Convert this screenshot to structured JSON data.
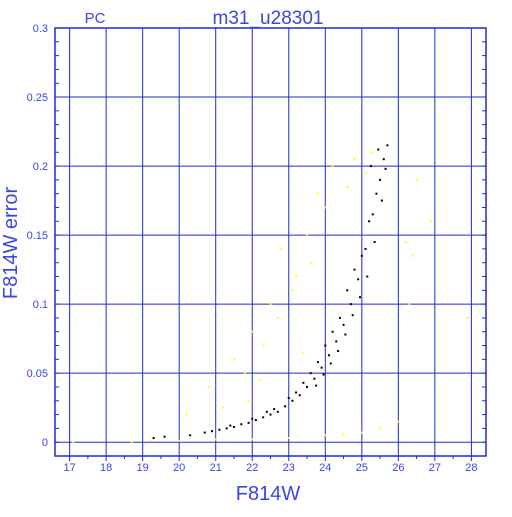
{
  "chart_data": {
    "type": "scatter",
    "title": "m31_u28301",
    "panel_label": "PC",
    "xlabel": "F814W",
    "ylabel": "F814W error",
    "xlim": [
      16.6,
      28.4
    ],
    "ylim": [
      -0.01,
      0.3
    ],
    "x_ticks": [
      17,
      18,
      19,
      20,
      21,
      22,
      23,
      24,
      25,
      26,
      27,
      28
    ],
    "y_ticks": [
      0,
      0.05,
      0.1,
      0.15,
      0.2,
      0.25,
      0.3
    ],
    "y_tick_labels": [
      "0",
      "0.05",
      "0.1",
      "0.15",
      "0.2",
      "0.25",
      "0.3"
    ],
    "grid": true,
    "colors": {
      "axis": "#1e2bd0",
      "grid": "#1e2bd0",
      "text": "#3a46e0",
      "series_main": "#000000",
      "series_secondary": "#ffff00"
    },
    "series": [
      {
        "color": "#000000",
        "points": [
          [
            19.3,
            0.003
          ],
          [
            19.6,
            0.004
          ],
          [
            20.3,
            0.005
          ],
          [
            20.7,
            0.007
          ],
          [
            20.9,
            0.008
          ],
          [
            21.1,
            0.009
          ],
          [
            21.3,
            0.01
          ],
          [
            21.5,
            0.011
          ],
          [
            21.7,
            0.013
          ],
          [
            21.9,
            0.014
          ],
          [
            22.1,
            0.016
          ],
          [
            22.3,
            0.018
          ],
          [
            22.5,
            0.02
          ],
          [
            22.7,
            0.022
          ],
          [
            22.9,
            0.026
          ],
          [
            23.1,
            0.03
          ],
          [
            23.3,
            0.034
          ],
          [
            23.5,
            0.04
          ],
          [
            23.7,
            0.046
          ],
          [
            23.9,
            0.054
          ],
          [
            24.1,
            0.063
          ],
          [
            24.3,
            0.073
          ],
          [
            24.5,
            0.085
          ],
          [
            24.7,
            0.1
          ],
          [
            24.9,
            0.118
          ],
          [
            25.1,
            0.14
          ],
          [
            25.3,
            0.165
          ],
          [
            25.5,
            0.19
          ],
          [
            25.7,
            0.215
          ],
          [
            21.4,
            0.012
          ],
          [
            22.0,
            0.017
          ],
          [
            22.6,
            0.024
          ],
          [
            23.2,
            0.036
          ],
          [
            23.8,
            0.058
          ],
          [
            24.4,
            0.09
          ],
          [
            25.0,
            0.135
          ],
          [
            25.4,
            0.18
          ],
          [
            25.6,
            0.205
          ],
          [
            24.2,
            0.08
          ],
          [
            24.6,
            0.11
          ],
          [
            25.2,
            0.16
          ],
          [
            24.8,
            0.125
          ],
          [
            23.6,
            0.05
          ],
          [
            23.0,
            0.032
          ],
          [
            22.4,
            0.022
          ],
          [
            24.95,
            0.105
          ],
          [
            25.15,
            0.12
          ],
          [
            25.35,
            0.145
          ],
          [
            24.0,
            0.07
          ],
          [
            23.4,
            0.043
          ],
          [
            25.55,
            0.175
          ],
          [
            25.65,
            0.198
          ],
          [
            25.45,
            0.212
          ],
          [
            25.25,
            0.2
          ],
          [
            24.75,
            0.092
          ],
          [
            24.55,
            0.078
          ],
          [
            24.35,
            0.066
          ],
          [
            24.15,
            0.057
          ],
          [
            23.95,
            0.049
          ],
          [
            23.75,
            0.041
          ]
        ]
      },
      {
        "color": "#ffff00",
        "points": [
          [
            17.1,
            0.0
          ],
          [
            18.7,
            0.0
          ],
          [
            19.2,
            0.001
          ],
          [
            20.0,
            0.001
          ],
          [
            21.0,
            0.002
          ],
          [
            22.0,
            0.002
          ],
          [
            23.0,
            0.003
          ],
          [
            24.0,
            0.005
          ],
          [
            24.5,
            0.006
          ],
          [
            25.0,
            0.007
          ],
          [
            25.5,
            0.01
          ],
          [
            26.0,
            0.015
          ],
          [
            20.8,
            0.04
          ],
          [
            21.5,
            0.06
          ],
          [
            22.0,
            0.08
          ],
          [
            22.5,
            0.1
          ],
          [
            22.8,
            0.14
          ],
          [
            23.2,
            0.12
          ],
          [
            23.5,
            0.15
          ],
          [
            23.8,
            0.18
          ],
          [
            24.2,
            0.2
          ],
          [
            24.8,
            0.205
          ],
          [
            25.3,
            0.21
          ],
          [
            26.5,
            0.19
          ],
          [
            26.9,
            0.16
          ],
          [
            27.9,
            0.09
          ],
          [
            21.2,
            0.025
          ],
          [
            21.8,
            0.05
          ],
          [
            22.3,
            0.07
          ],
          [
            22.7,
            0.09
          ],
          [
            23.1,
            0.11
          ],
          [
            23.6,
            0.13
          ],
          [
            24.0,
            0.17
          ],
          [
            26.2,
            0.145
          ],
          [
            26.4,
            0.135
          ],
          [
            20.2,
            0.02
          ],
          [
            21.9,
            0.03
          ],
          [
            22.2,
            0.045
          ],
          [
            23.4,
            0.065
          ],
          [
            24.6,
            0.185
          ],
          [
            25.1,
            0.195
          ],
          [
            26.3,
            0.1
          ]
        ]
      }
    ]
  }
}
